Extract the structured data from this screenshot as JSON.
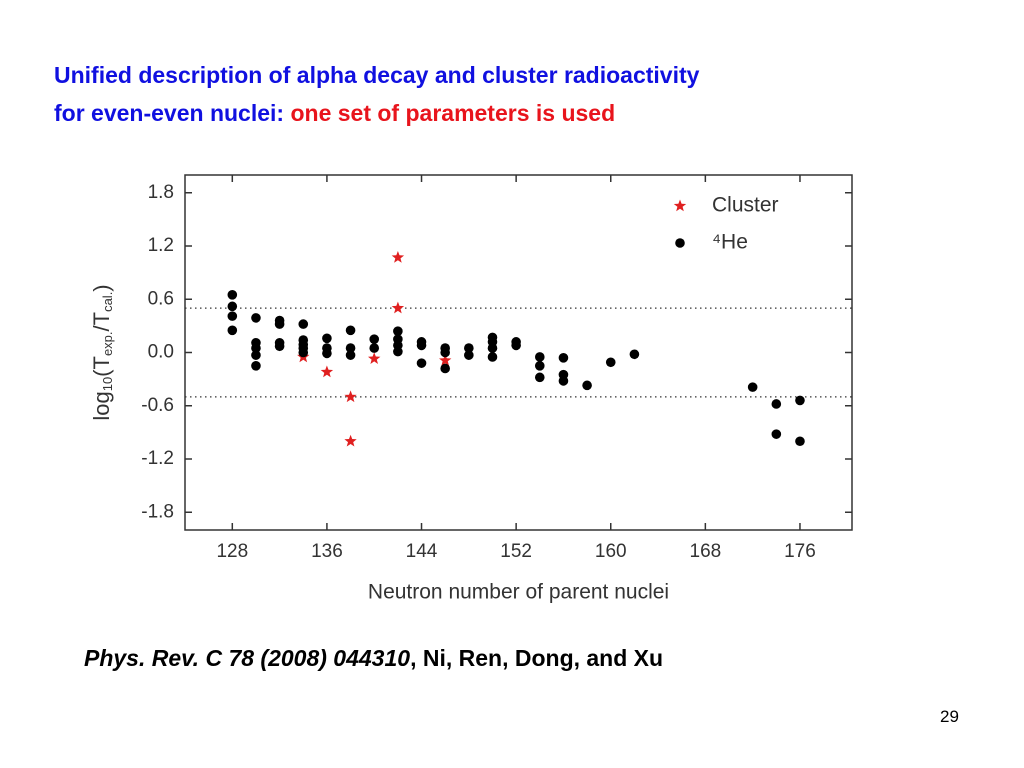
{
  "slide": {
    "title_line1": "Unified description of alpha decay and cluster radioactivity",
    "title_line2_blue": "for even-even nuclei:",
    "title_line2_red": "one set of parameters is used",
    "citation_italic": "Phys. Rev. C 78 (2008) 044310",
    "citation_rest": ", Ni, Ren, Dong, and Xu",
    "page_number": "29"
  },
  "chart_data": {
    "type": "scatter",
    "x_label": "Neutron number of parent nuclei",
    "y_label": [
      "log",
      "10",
      "(T",
      "exp.",
      "/T",
      "cal.",
      ")"
    ],
    "xlim": [
      124,
      180.4
    ],
    "xticks": [
      128,
      136,
      144,
      152,
      160,
      168,
      176
    ],
    "ylim": [
      -2,
      2
    ],
    "yticks": [
      1.8,
      1.2,
      0.6,
      {
        "value": 0,
        "label": "0.0"
      },
      -0.6,
      -1.2,
      -1.8
    ],
    "reference_lines": [
      0.5,
      -0.5
    ],
    "legend": "top-right",
    "series": [
      {
        "name": "Cluster",
        "color": "#e02020",
        "marker": "star",
        "x": [
          134,
          136,
          138,
          138,
          140,
          142,
          142,
          146
        ],
        "values": [
          -0.05,
          -0.22,
          -0.5,
          -1.0,
          -0.07,
          1.07,
          0.5,
          -0.09
        ]
      },
      {
        "name": "⁴He",
        "color": "#000000",
        "marker": "circle",
        "x": [
          128,
          128,
          128,
          128,
          130,
          130,
          130,
          130,
          130,
          132,
          132,
          132,
          132,
          134,
          134,
          134,
          134,
          134,
          136,
          136,
          136,
          138,
          138,
          138,
          140,
          140,
          142,
          142,
          142,
          142,
          144,
          144,
          144,
          146,
          146,
          146,
          148,
          148,
          150,
          150,
          150,
          150,
          152,
          152,
          154,
          154,
          154,
          156,
          156,
          156,
          158,
          160,
          162,
          172,
          174,
          174,
          176,
          176
        ],
        "values": [
          0.65,
          0.52,
          0.41,
          0.25,
          0.39,
          0.11,
          0.05,
          -0.03,
          -0.15,
          0.36,
          0.32,
          0.11,
          0.07,
          0.32,
          0.14,
          0.09,
          0.05,
          0.0,
          0.16,
          0.05,
          -0.01,
          0.25,
          0.05,
          -0.03,
          0.15,
          0.05,
          0.24,
          0.15,
          0.08,
          0.01,
          0.12,
          0.08,
          -0.12,
          0.05,
          0.0,
          -0.18,
          0.05,
          -0.03,
          0.17,
          0.12,
          0.05,
          -0.05,
          0.12,
          0.08,
          -0.05,
          -0.15,
          -0.28,
          -0.06,
          -0.25,
          -0.32,
          -0.37,
          -0.11,
          -0.02,
          -0.39,
          -0.58,
          -0.92,
          -0.54,
          -1.0
        ]
      }
    ]
  }
}
